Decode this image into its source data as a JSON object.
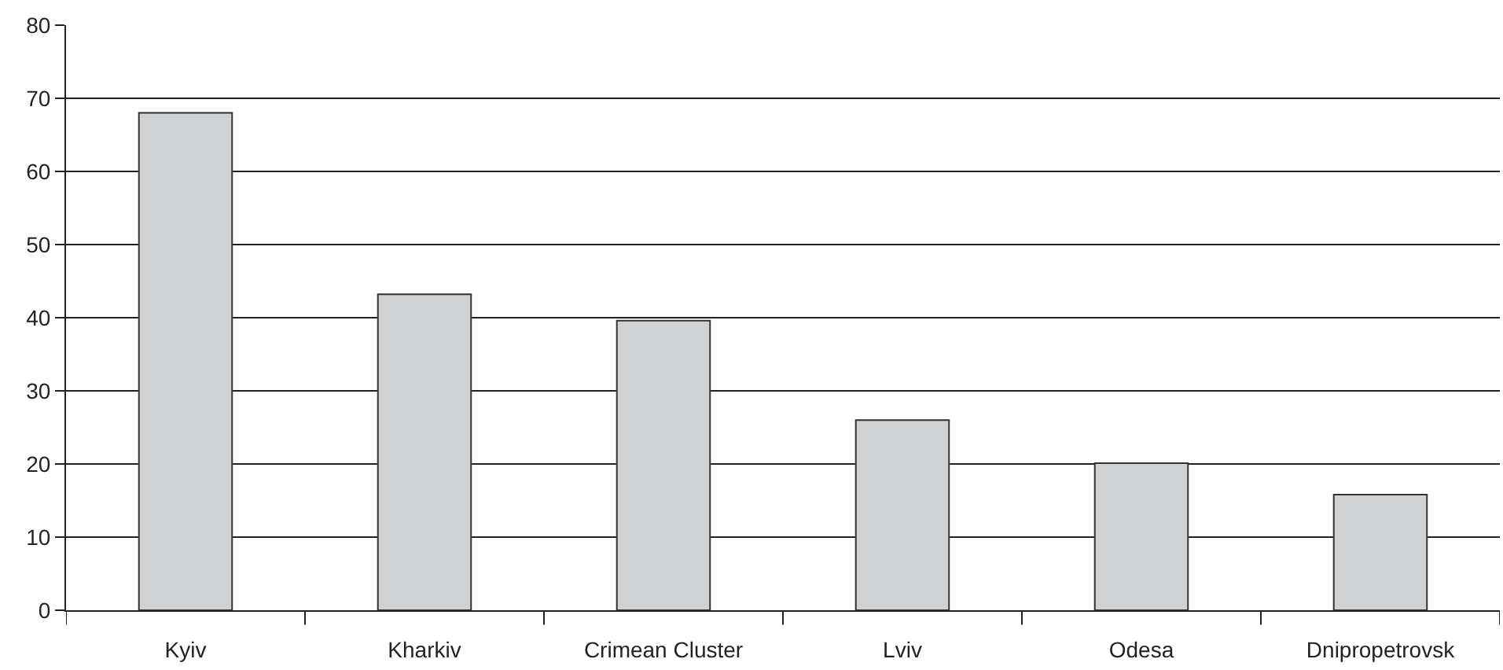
{
  "chart_data": {
    "type": "bar",
    "categories": [
      "Kyiv",
      "Kharkiv",
      "Crimean Cluster",
      "Lviv",
      "Odesa",
      "Dnipropetrovsk"
    ],
    "values": [
      68,
      43.2,
      39.6,
      26,
      20.1,
      15.8
    ],
    "color": "#d1d2d4",
    "ylim": [
      0,
      80
    ],
    "yticks": [
      0,
      10,
      20,
      30,
      40,
      50,
      60,
      70,
      80
    ],
    "grid": "y"
  }
}
